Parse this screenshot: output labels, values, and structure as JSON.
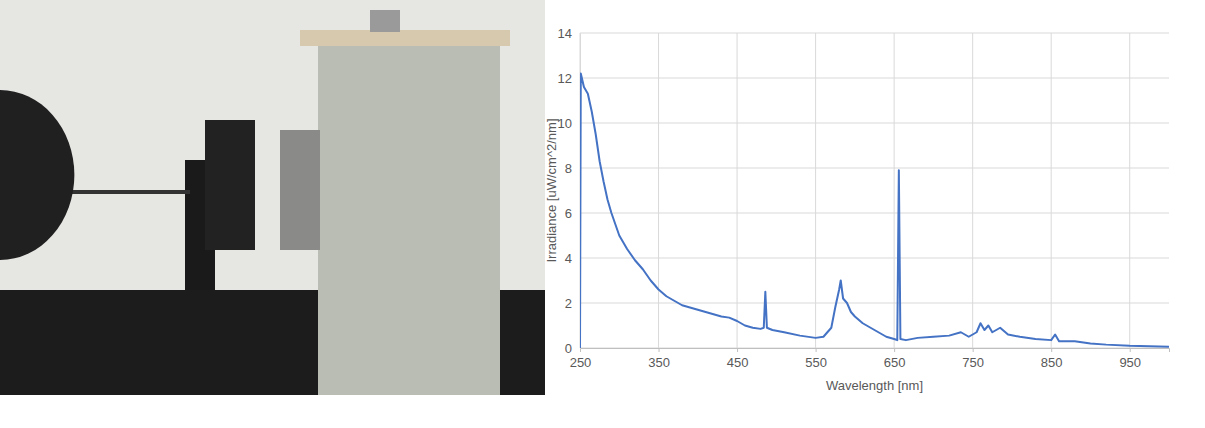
{
  "chart_data": {
    "type": "line",
    "x_label": "Wavelength [nm]",
    "y_label": "Irradiance [uW/cm^2/nm]",
    "x": [
      250,
      251,
      255,
      260,
      265,
      270,
      275,
      280,
      285,
      290,
      295,
      300,
      310,
      320,
      330,
      340,
      350,
      360,
      370,
      380,
      390,
      400,
      410,
      420,
      430,
      440,
      450,
      460,
      470,
      480,
      484,
      486,
      488,
      495,
      510,
      530,
      550,
      560,
      570,
      575,
      580,
      582,
      585,
      590,
      595,
      600,
      610,
      620,
      630,
      640,
      650,
      654,
      656,
      658,
      665,
      680,
      700,
      720,
      735,
      745,
      755,
      760,
      765,
      770,
      775,
      785,
      795,
      810,
      830,
      850,
      855,
      860,
      880,
      900,
      920,
      950,
      975,
      1000
    ],
    "series": [
      {
        "color": "#4472c4",
        "values": [
          0,
          12.2,
          11.6,
          11.3,
          10.5,
          9.5,
          8.3,
          7.4,
          6.6,
          6.0,
          5.5,
          5.0,
          4.4,
          3.9,
          3.5,
          3.0,
          2.6,
          2.3,
          2.1,
          1.9,
          1.8,
          1.7,
          1.6,
          1.5,
          1.4,
          1.35,
          1.2,
          1.0,
          0.9,
          0.85,
          0.9,
          2.5,
          0.9,
          0.8,
          0.7,
          0.55,
          0.45,
          0.5,
          0.9,
          1.8,
          2.6,
          3.0,
          2.2,
          2.0,
          1.6,
          1.4,
          1.1,
          0.9,
          0.7,
          0.5,
          0.4,
          0.35,
          7.9,
          0.4,
          0.35,
          0.45,
          0.5,
          0.55,
          0.7,
          0.5,
          0.7,
          1.1,
          0.8,
          1.0,
          0.7,
          0.9,
          0.6,
          0.5,
          0.4,
          0.35,
          0.6,
          0.3,
          0.3,
          0.2,
          0.15,
          0.1,
          0.08,
          0.05
        ]
      }
    ],
    "xlim": [
      250,
      1000
    ],
    "ylim": [
      0,
      14
    ],
    "xticks": [
      250,
      350,
      450,
      550,
      650,
      750,
      850,
      950
    ],
    "yticks": [
      0,
      2,
      4,
      6,
      8,
      10,
      12,
      14
    ],
    "grid": true
  }
}
